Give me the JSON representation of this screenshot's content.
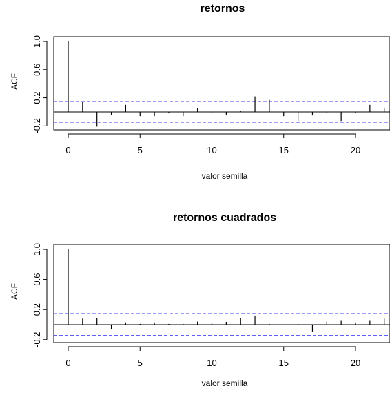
{
  "chart_data": [
    {
      "type": "bar",
      "title": "retornos",
      "xlabel": "valor semilla",
      "ylabel": "ACF",
      "x": [
        0,
        1,
        2,
        3,
        4,
        5,
        6,
        7,
        8,
        9,
        10,
        11,
        12,
        13,
        14,
        15,
        16,
        17,
        18,
        19,
        20,
        21,
        22
      ],
      "values": [
        1.0,
        0.14,
        -0.21,
        -0.04,
        0.1,
        -0.06,
        -0.06,
        -0.02,
        -0.06,
        0.05,
        -0.01,
        -0.04,
        0.01,
        0.22,
        0.17,
        -0.06,
        -0.13,
        -0.05,
        -0.02,
        -0.13,
        -0.02,
        0.1,
        0.06
      ],
      "xlim": [
        -0.6,
        22.4
      ],
      "ylim": [
        -0.28,
        1.0
      ],
      "xticks": [
        "0",
        "5",
        "10",
        "15",
        "20"
      ],
      "yticks": [
        "-0.2",
        "0.2",
        "0.6",
        "1.0"
      ],
      "confidence_band": [
        0.146,
        -0.146
      ],
      "band_color": "#0000ee",
      "series_color": "#000000"
    },
    {
      "type": "bar",
      "title": "retornos cuadrados",
      "xlabel": "valor semilla",
      "ylabel": "ACF",
      "x": [
        0,
        1,
        2,
        3,
        4,
        5,
        6,
        7,
        8,
        9,
        10,
        11,
        12,
        13,
        14,
        15,
        16,
        17,
        18,
        19,
        20,
        21,
        22
      ],
      "values": [
        1.0,
        0.08,
        0.09,
        -0.06,
        0.02,
        0.01,
        0.02,
        0.01,
        0.01,
        0.04,
        0.02,
        0.03,
        0.09,
        0.12,
        0.01,
        0.0,
        0.01,
        -0.1,
        0.04,
        0.05,
        0.02,
        0.05,
        0.08
      ],
      "xlim": [
        -0.6,
        22.4
      ],
      "ylim": [
        -0.28,
        1.0
      ],
      "xticks": [
        "0",
        "5",
        "10",
        "15",
        "20"
      ],
      "yticks": [
        "-0.2",
        "0.2",
        "0.6",
        "1.0"
      ],
      "confidence_band": [
        0.146,
        -0.146
      ],
      "band_color": "#0000ee",
      "series_color": "#000000"
    }
  ]
}
